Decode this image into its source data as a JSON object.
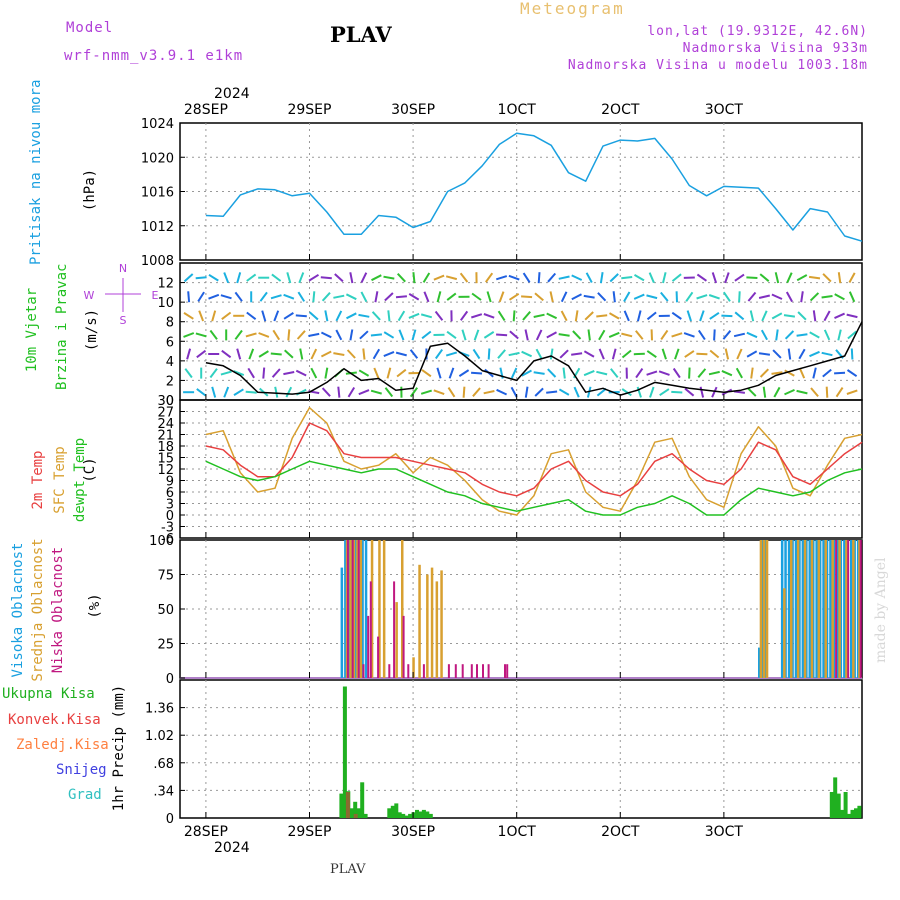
{
  "header": {
    "model_label": "Model",
    "model_name": "wrf-nmm_v3.9.1 e1km",
    "station": "PLAV",
    "title": "Meteogram",
    "lonlat": "lon,lat (19.9312E, 42.6N)",
    "elevation": "Nadmorska Visina 933m",
    "elevation_model": "Nadmorska Visina u modelu 1003.18m",
    "footer_station": "PLAV",
    "watermark": "made by Angel"
  },
  "colors": {
    "pressure": "#1aa0e0",
    "temp2m": "#e84040",
    "sfc": "#d8a030",
    "dewpt": "#20c020",
    "high_cloud": "#1aa0e0",
    "mid_cloud": "#d8a030",
    "low_cloud": "#c01880",
    "total_precip": "#20b020",
    "conv_precip": "#e84040",
    "frozen_precip": "#ff8040",
    "snow": "#4040e0",
    "grad": "#30c0c0"
  },
  "x_axis": {
    "top_year": "2024",
    "bottom_year": "2024",
    "dates": [
      "28SEP",
      "29SEP",
      "30SEP",
      "1OCT",
      "2OCT",
      "3OCT"
    ]
  },
  "panels": {
    "pressure": {
      "label": "Pritisak na nivou mora",
      "unit": "(hPa)"
    },
    "wind": {
      "label1": "10m Vjetar",
      "label2": "Brzina i Pravac",
      "unit": "(m/s)"
    },
    "temp": {
      "label_t2": "2m Temp",
      "label_sfc": "SFC Temp",
      "label_dew": "dewpt Temp",
      "unit": "(C)"
    },
    "cloud": {
      "label_high": "Visoka Oblacnost",
      "label_mid": "Srednja Oblacnost",
      "label_low": "Niska Oblacnost",
      "unit": "(%)"
    },
    "precip": {
      "labels": [
        "Ukupna Kisa",
        "Konvek.Kisa",
        "Zaledj.Kisa",
        "Snijeg",
        "Grad"
      ],
      "unit": "1hr Precip (mm)"
    }
  },
  "chart_data": [
    {
      "type": "line",
      "name": "pressure",
      "ylim": [
        1008,
        1024
      ],
      "yticks": [
        1008,
        1012,
        1016,
        1020,
        1024
      ],
      "xlabels": [
        "28SEP",
        "29SEP",
        "30SEP",
        "1OCT",
        "2OCT",
        "3OCT"
      ],
      "x_hours": [
        0,
        4,
        8,
        12,
        16,
        20,
        24,
        28,
        32,
        36,
        40,
        44,
        48,
        52,
        56,
        60,
        64,
        68,
        72,
        76,
        80,
        84,
        88,
        92,
        96,
        100,
        104,
        108,
        112,
        116,
        120,
        124,
        128,
        132,
        136,
        140,
        144,
        148,
        152
      ],
      "series": [
        {
          "values": [
            1013.2,
            1013.1,
            1015.6,
            1016.3,
            1016.2,
            1015.5,
            1015.8,
            1013.6,
            1011.0,
            1011.0,
            1013.2,
            1013.0,
            1011.8,
            1012.5,
            1016.0,
            1017.0,
            1019.0,
            1021.5,
            1022.8,
            1022.5,
            1021.4,
            1018.2,
            1017.2,
            1021.3,
            1022.0,
            1021.9,
            1022.2,
            1019.8,
            1016.7,
            1015.5,
            1016.6,
            1016.5,
            1016.4,
            1014.0,
            1011.5,
            1014.0,
            1013.6,
            1010.8,
            1010.2
          ]
        }
      ]
    },
    {
      "type": "line",
      "name": "wind_speed",
      "ylim": [
        0,
        14
      ],
      "yticks": [
        0,
        2,
        4,
        6,
        8,
        10,
        12
      ],
      "compass": {
        "n": "N",
        "s": "S",
        "e": "E",
        "w": "W"
      },
      "x_hours": [
        0,
        4,
        8,
        12,
        16,
        20,
        24,
        28,
        32,
        36,
        40,
        44,
        48,
        52,
        56,
        60,
        64,
        68,
        72,
        76,
        80,
        84,
        88,
        92,
        96,
        100,
        104,
        108,
        112,
        116,
        120,
        124,
        128,
        132,
        136,
        140,
        144,
        148,
        152
      ],
      "series": [
        {
          "values": [
            3.8,
            3.5,
            2.5,
            0.8,
            0.7,
            0.6,
            0.8,
            1.8,
            3.2,
            2.0,
            2.2,
            1.0,
            1.2,
            5.5,
            5.8,
            4.5,
            3.0,
            2.5,
            2.0,
            4.0,
            4.5,
            3.5,
            0.8,
            1.2,
            0.5,
            1.0,
            1.8,
            1.5,
            1.2,
            1.0,
            0.8,
            1.0,
            1.5,
            2.5,
            3.0,
            3.5,
            4.0,
            4.5,
            8.0
          ]
        }
      ]
    },
    {
      "type": "line",
      "name": "temperature",
      "ylim": [
        -6,
        30
      ],
      "yticks": [
        -6,
        -3,
        0,
        3,
        6,
        9,
        12,
        15,
        18,
        21,
        24,
        27,
        30
      ],
      "x_hours": [
        0,
        4,
        8,
        12,
        16,
        20,
        24,
        28,
        32,
        36,
        40,
        44,
        48,
        52,
        56,
        60,
        64,
        68,
        72,
        76,
        80,
        84,
        88,
        92,
        96,
        100,
        104,
        108,
        112,
        116,
        120,
        124,
        128,
        132,
        136,
        140,
        144,
        148,
        152
      ],
      "series": [
        {
          "name": "2m Temp",
          "values": [
            18,
            17,
            13,
            10,
            10,
            15,
            24,
            22,
            16,
            15,
            15,
            15,
            14,
            13,
            12,
            11,
            8,
            6,
            5,
            7,
            12,
            14,
            9,
            6,
            5,
            8,
            14,
            16,
            12,
            9,
            8,
            12,
            19,
            17,
            10,
            8,
            12,
            16,
            19
          ]
        },
        {
          "name": "SFC Temp",
          "values": [
            21,
            22,
            11,
            6,
            7,
            20,
            28,
            24,
            14,
            12,
            13,
            16,
            11,
            15,
            13,
            9,
            4,
            1,
            0,
            5,
            16,
            17,
            6,
            2,
            1,
            9,
            19,
            20,
            10,
            4,
            2,
            16,
            23,
            18,
            7,
            5,
            13,
            20,
            21
          ]
        },
        {
          "name": "dewpt Temp",
          "values": [
            14,
            12,
            10,
            9,
            10,
            12,
            14,
            13,
            12,
            11,
            12,
            12,
            10,
            8,
            6,
            5,
            3,
            2,
            1,
            2,
            3,
            4,
            1,
            0,
            0,
            2,
            3,
            5,
            3,
            0,
            0,
            4,
            7,
            6,
            5,
            6,
            9,
            11,
            12
          ]
        }
      ]
    },
    {
      "type": "bar",
      "name": "cloud_cover",
      "ylim": [
        0,
        100
      ],
      "yticks": [
        0,
        25,
        50,
        75,
        100
      ],
      "series": [
        {
          "name": "Visoka Oblacnost",
          "x_hours": [
            31.5,
            32.3,
            33.1,
            33.9,
            34.7,
            35.5,
            36.3,
            37.1,
            128.2,
            128.9,
            129.6,
            133.5,
            134.3,
            135.1,
            135.9,
            136.7,
            137.5,
            138.3,
            139.1,
            139.9,
            140.7,
            141.5,
            142.3,
            143.1,
            143.9,
            144.7,
            145.5,
            146.3,
            147.1,
            147.9,
            148.7,
            149.5,
            150.3,
            151.1
          ],
          "values": [
            80,
            100,
            100,
            100,
            100,
            100,
            100,
            100,
            22,
            100,
            100,
            100,
            100,
            100,
            100,
            100,
            100,
            100,
            100,
            100,
            100,
            100,
            100,
            100,
            100,
            100,
            100,
            100,
            100,
            100,
            100,
            100,
            100,
            100
          ]
        },
        {
          "name": "Srednja Oblacnost",
          "x_hours": [
            32.7,
            33.5,
            34.3,
            35.1,
            35.9,
            38.5,
            40.2,
            41.3,
            44.2,
            45.5,
            48.1,
            49.5,
            51.3,
            52.4,
            53.5,
            54.6,
            128.6,
            129.3,
            130.0,
            134.0,
            135.6,
            137.2,
            138.8,
            140.4,
            142.0,
            143.6,
            145.2,
            146.8,
            148.4,
            150.0,
            151.4
          ],
          "values": [
            100,
            100,
            100,
            100,
            100,
            100,
            100,
            100,
            55,
            100,
            15,
            82,
            75,
            80,
            70,
            78,
            100,
            100,
            100,
            65,
            100,
            100,
            100,
            100,
            100,
            100,
            100,
            100,
            100,
            100,
            100
          ]
        },
        {
          "name": "Niska Oblacnost",
          "x_hours": [
            32.9,
            34.0,
            35.4,
            36.5,
            37.6,
            38.2,
            39.9,
            42.5,
            43.6,
            45.8,
            46.9,
            50.5,
            56.3,
            57.9,
            59.5,
            61.6,
            62.8,
            64.2,
            65.5,
            69.3,
            69.8,
            146.0,
            148.8,
            151.7
          ],
          "values": [
            100,
            100,
            100,
            10,
            45,
            70,
            30,
            10,
            70,
            45,
            10,
            10,
            10,
            10,
            10,
            10,
            10,
            10,
            10,
            10,
            10,
            100,
            100,
            100
          ]
        }
      ]
    },
    {
      "type": "bar",
      "name": "precipitation",
      "ylim": [
        0,
        1.7
      ],
      "yticks": [
        0,
        0.34,
        0.68,
        1.02,
        1.36
      ],
      "series": [
        {
          "name": "Ukupna Kisa",
          "x_hours": [
            31.4,
            32.2,
            33.0,
            33.8,
            34.6,
            35.4,
            36.2,
            37.0,
            42.5,
            43.3,
            44.1,
            44.9,
            45.7,
            46.5,
            47.3,
            48.1,
            48.9,
            49.7,
            50.5,
            51.3,
            52.1,
            145.0,
            145.8,
            146.6,
            147.4,
            148.2,
            149.0,
            149.8,
            150.6,
            151.4
          ],
          "values": [
            0.3,
            1.62,
            0.33,
            0.12,
            0.2,
            0.12,
            0.44,
            0.05,
            0.12,
            0.15,
            0.18,
            0.07,
            0.05,
            0.03,
            0.05,
            0.07,
            0.1,
            0.08,
            0.1,
            0.08,
            0.05,
            0.32,
            0.5,
            0.3,
            0.1,
            0.32,
            0.05,
            0.1,
            0.12,
            0.15
          ]
        },
        {
          "name": "Konvek.Kisa",
          "x_hours": [
            32.9,
            34.7
          ],
          "values": [
            0.32,
            0.05
          ]
        }
      ]
    }
  ]
}
